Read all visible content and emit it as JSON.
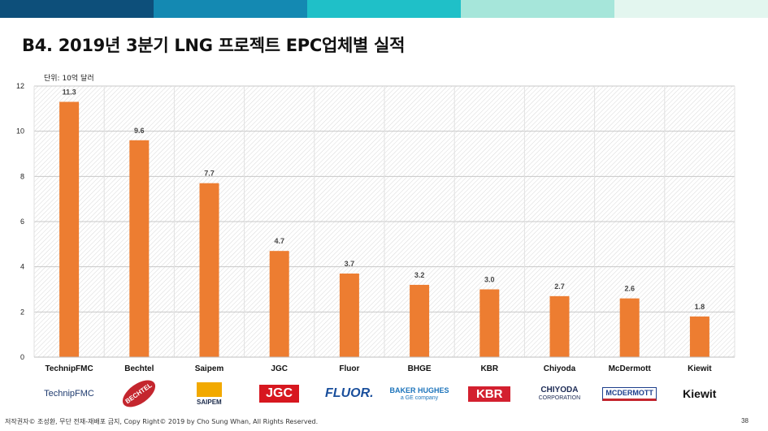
{
  "header": {
    "title": "B4. 2019년 3분기 LNG 프로젝트 EPC업체별 실적",
    "unit": "단위: 10억 달러",
    "bar_colors": [
      "#0d4f7a",
      "#1489b2",
      "#1fc0c8",
      "#a6e6da",
      "#e3f6ef"
    ]
  },
  "chart_data": {
    "type": "bar",
    "categories": [
      "TechnipFMC",
      "Bechtel",
      "Saipem",
      "JGC",
      "Fluor",
      "BHGE",
      "KBR",
      "Chiyoda",
      "McDermott",
      "Kiewit"
    ],
    "values": [
      11.3,
      9.6,
      7.7,
      4.7,
      3.7,
      3.2,
      3.0,
      2.7,
      2.6,
      1.8
    ],
    "value_labels": [
      "11.3",
      "9.6",
      "7.7",
      "4.7",
      "3.7",
      "3.2",
      "3.0",
      "2.7",
      "2.6",
      "1.8"
    ],
    "title": "",
    "xlabel": "",
    "ylabel": "",
    "ylim": [
      0,
      12
    ],
    "yticks": [
      "0",
      "2",
      "4",
      "6",
      "8",
      "10",
      "12"
    ],
    "grid": true,
    "bar_color": "#ed7d31"
  },
  "logos": [
    {
      "name": "technipfmc-logo",
      "text": "TechnipFMC",
      "color": "#1f3b6f"
    },
    {
      "name": "bechtel-logo",
      "text": "BECHTEL",
      "color": "#ffffff"
    },
    {
      "name": "saipem-logo",
      "text": "SAIPEM",
      "color": "#1b2a4a"
    },
    {
      "name": "jgc-logo",
      "text": "JGC",
      "color": "#ffffff"
    },
    {
      "name": "fluor-logo",
      "text": "FLUOR.",
      "color": "#1a4f9c"
    },
    {
      "name": "bhge-logo",
      "text": "BAKER HUGHES",
      "sub": "a GE company",
      "color": "#1c74bb"
    },
    {
      "name": "kbr-logo",
      "text": "KBR",
      "color": "#ffffff"
    },
    {
      "name": "chiyoda-logo",
      "text": "CHIYODA",
      "sub": "CORPORATION",
      "color": "#1d2b55"
    },
    {
      "name": "mcdermott-logo",
      "text": "MCDERMOTT",
      "color": "#1d3f8c"
    },
    {
      "name": "kiewit-logo",
      "text": "Kiewit",
      "color": "#111111"
    }
  ],
  "footer": {
    "copyright": "저작권자© 조성환, 무단 전재-재배포 금지, Copy Right© 2019 by Cho Sung Whan, All Rights Reserved.",
    "page": "38"
  }
}
